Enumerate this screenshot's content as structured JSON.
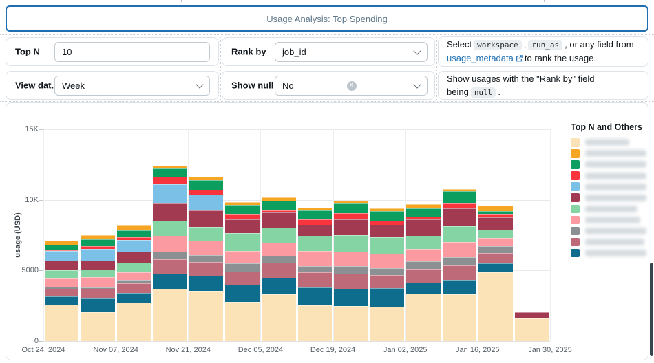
{
  "widget_title": "Usage Analysis: Top Spending",
  "icons": {
    "clear": "×"
  },
  "filters": {
    "top_n": {
      "label": "Top N",
      "value": "10"
    },
    "rank_by": {
      "label": "Rank by",
      "value": "job_id"
    },
    "view_data": {
      "label": "View dat...",
      "value": "Week"
    },
    "show_null": {
      "label": "Show null",
      "value": "No"
    },
    "rank_by_help": {
      "part1": "Select",
      "code1": "workspace",
      "comma": ",",
      "code2": "run_as",
      "part2": ", or any field from",
      "link_text": "usage_metadata",
      "part3": "to rank the usage."
    },
    "show_null_help": {
      "part1": "Show usages with the \"Rank by\" field being",
      "code": "null",
      "part2": "."
    }
  },
  "chart_data": {
    "type": "bar",
    "stacked": true,
    "title": "",
    "xlabel": "",
    "ylabel": "usage (USD)",
    "ylim": [
      0,
      15000
    ],
    "x_unit": "week",
    "grid": true,
    "legend_position": "right",
    "legend_title": "Top N and Others",
    "series_labels_blurred": true,
    "yticks": [
      {
        "value": 0,
        "label": "0"
      },
      {
        "value": 5000,
        "label": "5000"
      },
      {
        "value": 10000,
        "label": "10K"
      },
      {
        "value": 15000,
        "label": "15K"
      }
    ],
    "xtick_labels": [
      "Oct 24, 2024",
      "Nov 07, 2024",
      "Nov 21, 2024",
      "Dec 05, 2024",
      "Dec 19, 2024",
      "Jan 02, 2025",
      "Jan 16, 2025",
      "Jan 30, 2025"
    ],
    "stack_order_bottom_to_top": [
      "cream",
      "teal",
      "rose",
      "gray",
      "pink",
      "mint",
      "maroon",
      "blue",
      "red",
      "green",
      "orange"
    ],
    "legend_order": [
      "cream",
      "orange",
      "green",
      "red",
      "blue",
      "maroon",
      "mint",
      "pink",
      "gray",
      "rose",
      "teal"
    ],
    "colors": {
      "cream": "#fbe3b7",
      "orange": "#f6a623",
      "green": "#0b9e5e",
      "red": "#f8353c",
      "blue": "#7ac0e7",
      "maroon": "#a23b52",
      "mint": "#84d5a3",
      "pink": "#fb9aa0",
      "gray": "#8d9093",
      "rose": "#bf6a79",
      "teal": "#0e6d8c"
    },
    "bars": [
      [
        2580,
        570,
        530,
        180,
        570,
        590,
        680,
        660,
        70,
        410,
        260
      ],
      [
        2050,
        950,
        700,
        100,
        710,
        545,
        660,
        820,
        180,
        495,
        295
      ],
      [
        2750,
        660,
        660,
        250,
        570,
        660,
        790,
        820,
        200,
        490,
        330
      ],
      [
        3720,
        1040,
        1060,
        490,
        1150,
        1070,
        1230,
        1370,
        530,
        570,
        200
      ],
      [
        3550,
        1100,
        950,
        490,
        1020,
        990,
        1150,
        1120,
        360,
        660,
        260
      ],
      [
        2780,
        1230,
        910,
        580,
        900,
        1230,
        990,
        0,
        330,
        690,
        210
      ],
      [
        3320,
        1150,
        1100,
        490,
        910,
        1070,
        1070,
        0,
        130,
        690,
        250
      ],
      [
        2530,
        1280,
        1050,
        460,
        1070,
        1070,
        790,
        0,
        360,
        660,
        200
      ],
      [
        2500,
        1220,
        1040,
        540,
        1020,
        1200,
        1100,
        0,
        460,
        660,
        200
      ],
      [
        2450,
        1320,
        900,
        490,
        1020,
        1170,
        860,
        0,
        330,
        660,
        210
      ],
      [
        3350,
        790,
        990,
        530,
        850,
        960,
        1150,
        0,
        200,
        590,
        280
      ],
      [
        3320,
        1020,
        1040,
        540,
        1100,
        1100,
        1260,
        0,
        380,
        850,
        180
      ],
      [
        4870,
        620,
        740,
        490,
        580,
        580,
        900,
        0,
        170,
        250,
        410
      ],
      [
        1630,
        0,
        0,
        0,
        0,
        0,
        440,
        0,
        0,
        0,
        0
      ]
    ]
  }
}
